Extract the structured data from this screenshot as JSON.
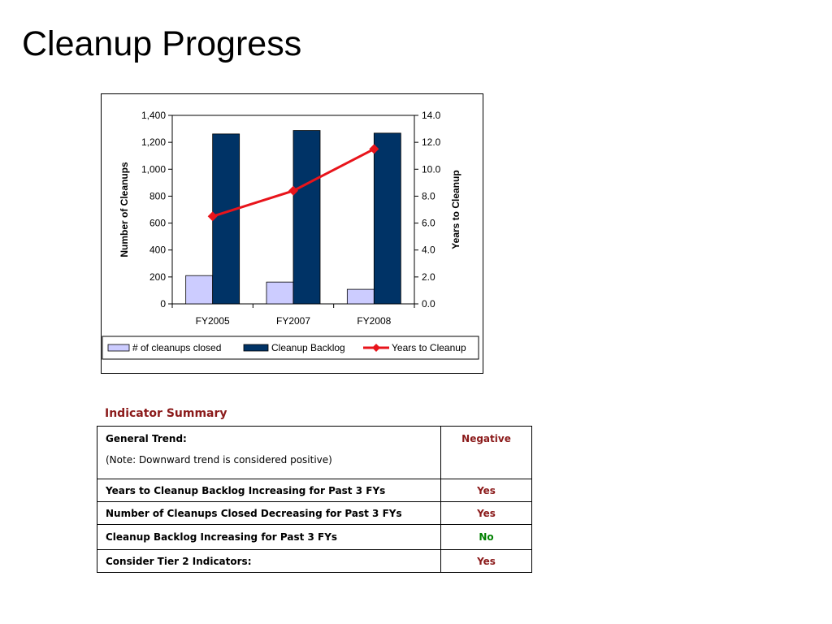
{
  "slide": {
    "title": "Cleanup Progress"
  },
  "chart_data": {
    "type": "bar",
    "categories": [
      "FY2005",
      "FY2007",
      "FY2008"
    ],
    "series": [
      {
        "name": "# of cleanups closed",
        "type": "bar",
        "axis": "left",
        "values": [
          210,
          162,
          108
        ],
        "color": "#ccccff"
      },
      {
        "name": "Cleanup Backlog",
        "type": "bar",
        "axis": "left",
        "values": [
          1262,
          1288,
          1268
        ],
        "color": "#003366"
      },
      {
        "name": "Years to Cleanup",
        "type": "line",
        "axis": "right",
        "values": [
          6.5,
          8.4,
          11.5
        ],
        "color": "#e8141b"
      }
    ],
    "ylabel": "Number of Cleanups",
    "y2label": "Years to Cleanup",
    "ylim": [
      0,
      1400
    ],
    "y2lim": [
      0,
      14
    ],
    "yticks": [
      "0",
      "200",
      "400",
      "600",
      "800",
      "1,000",
      "1,200",
      "1,400"
    ],
    "y2ticks": [
      "0.0",
      "2.0",
      "4.0",
      "6.0",
      "8.0",
      "10.0",
      "12.0",
      "14.0"
    ],
    "legend_position": "bottom",
    "grid": false
  },
  "indicator_summary": {
    "heading": "Indicator Summary",
    "heading_color": "#8b1a1a",
    "rows": [
      {
        "label": "General Trend:",
        "note": "(Note: Downward trend is considered positive)",
        "value": "Negative",
        "value_color": "#8b1a1a"
      },
      {
        "label": "Years to Cleanup Backlog Increasing for Past 3 FYs",
        "value": "Yes",
        "value_color": "#8b1a1a"
      },
      {
        "label": "Number of Cleanups Closed Decreasing for Past 3 FYs",
        "value": "Yes",
        "value_color": "#8b1a1a"
      },
      {
        "label": "Cleanup Backlog Increasing for Past 3 FYs",
        "value": "No",
        "value_color": "#008000"
      },
      {
        "label": "Consider Tier 2 Indicators:",
        "value": "Yes",
        "value_color": "#8b1a1a"
      }
    ]
  }
}
